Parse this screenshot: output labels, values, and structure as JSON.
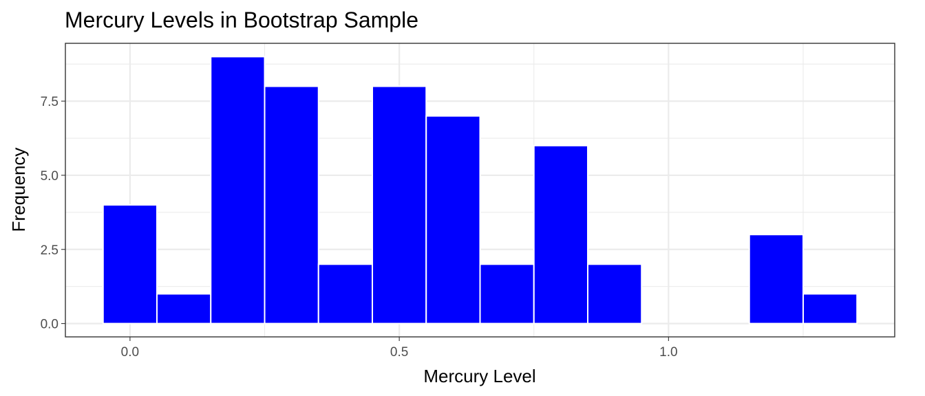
{
  "chart_data": {
    "type": "bar",
    "title": "Mercury Levels in Bootstrap Sample",
    "xlabel": "Mercury Level",
    "ylabel": "Frequency",
    "bin_width": 0.1,
    "bins": [
      {
        "center": 0.0,
        "count": 4
      },
      {
        "center": 0.1,
        "count": 1
      },
      {
        "center": 0.2,
        "count": 9
      },
      {
        "center": 0.3,
        "count": 8
      },
      {
        "center": 0.4,
        "count": 2
      },
      {
        "center": 0.5,
        "count": 8
      },
      {
        "center": 0.6,
        "count": 7
      },
      {
        "center": 0.7,
        "count": 2
      },
      {
        "center": 0.8,
        "count": 6
      },
      {
        "center": 0.9,
        "count": 2
      },
      {
        "center": 1.0,
        "count": 0
      },
      {
        "center": 1.1,
        "count": 0
      },
      {
        "center": 1.2,
        "count": 3
      },
      {
        "center": 1.3,
        "count": 1
      }
    ],
    "xlim": [
      -0.12,
      1.42
    ],
    "ylim": [
      -0.45,
      9.45
    ],
    "x_ticks": [
      0.0,
      0.5,
      1.0
    ],
    "x_tick_labels": [
      "0.0",
      "0.5",
      "1.0"
    ],
    "y_ticks": [
      0.0,
      2.5,
      5.0,
      7.5
    ],
    "y_tick_labels": [
      "0.0",
      "2.5",
      "5.0",
      "7.5"
    ],
    "grid": true,
    "legend": "none",
    "colors": {
      "bar_fill": "#0000ff",
      "bar_outline": "#ffffff",
      "background": "#ffffff"
    }
  }
}
